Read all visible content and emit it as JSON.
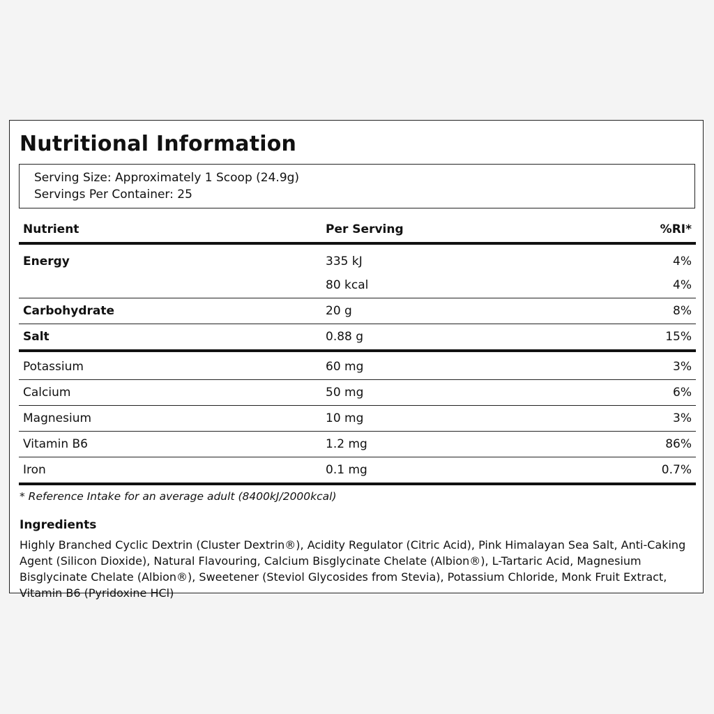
{
  "title": "Nutritional Information",
  "serving": {
    "size": "Serving Size: Approximately 1 Scoop (24.9g)",
    "per_container": "Servings Per Container: 25"
  },
  "table": {
    "headers": {
      "nutrient": "Nutrient",
      "per_serving": "Per Serving",
      "ri": "%RI*"
    },
    "rows": [
      {
        "nutrient": "Energy",
        "per_serving": "335 kJ",
        "ri": "4%"
      },
      {
        "nutrient": "",
        "per_serving": "80 kcal",
        "ri": "4%"
      },
      {
        "nutrient": "Carbohydrate",
        "per_serving": "20 g",
        "ri": "8%"
      },
      {
        "nutrient": "Salt",
        "per_serving": "0.88 g",
        "ri": "15%"
      },
      {
        "nutrient": "Potassium",
        "per_serving": "60 mg",
        "ri": "3%"
      },
      {
        "nutrient": "Calcium",
        "per_serving": "50 mg",
        "ri": "6%"
      },
      {
        "nutrient": "Magnesium",
        "per_serving": "10 mg",
        "ri": "3%"
      },
      {
        "nutrient": "Vitamin B6",
        "per_serving": "1.2 mg",
        "ri": "86%"
      },
      {
        "nutrient": "Iron",
        "per_serving": "0.1 mg",
        "ri": "0.7%"
      }
    ]
  },
  "footnote": "* Reference Intake for an average adult (8400kJ/2000kcal)",
  "ingredients": {
    "title": "Ingredients",
    "text": "Highly Branched Cyclic Dextrin (Cluster Dextrin®), Acidity Regulator (Citric Acid), Pink Himalayan Sea Salt, Anti-Caking Agent (Silicon Dioxide), Natural Flavouring, Calcium Bisglycinate Chelate (Albion®), L-Tartaric Acid, Magnesium Bisglycinate Chelate (Albion®), Sweetener (Steviol Glycosides from Stevia), Potassium Chloride, Monk Fruit Extract, Vitamin B6 (Pyridoxine HCl)"
  }
}
